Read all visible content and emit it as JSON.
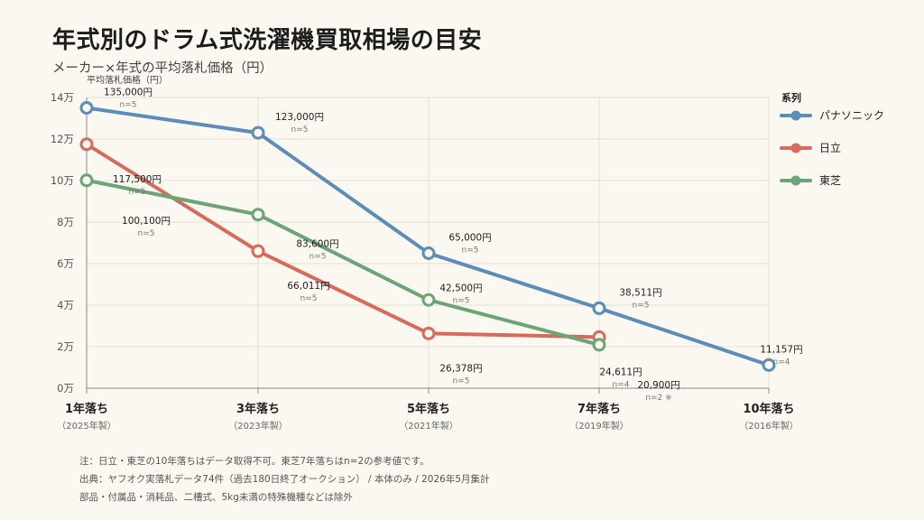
{
  "header": {
    "title": "年式別のドラム式洗濯機買取相場の目安",
    "subtitle": "メーカー×年式の平均落札価格（円）"
  },
  "chart_data": {
    "type": "line",
    "ylabel": "平均落札価格（円）",
    "ylim": [
      0,
      140000
    ],
    "yticks": [
      0,
      20000,
      40000,
      60000,
      80000,
      100000,
      120000,
      140000
    ],
    "ytick_labels": [
      "0万",
      "2万",
      "4万",
      "6万",
      "8万",
      "10万",
      "12万",
      "14万"
    ],
    "categories": [
      "1年落ち",
      "3年落ち",
      "5年落ち",
      "7年落ち",
      "10年落ち"
    ],
    "category_sublabels": [
      "（2025年製）",
      "（2023年製）",
      "（2021年製）",
      "（2019年製）",
      "（2016年製）"
    ],
    "x": [
      1,
      3,
      5,
      7,
      10
    ],
    "legend_title": "系列",
    "legend_position": "right",
    "grid": true,
    "series": [
      {
        "name": "パナソニック",
        "color": "#5b8db8",
        "values": [
          135000,
          123000,
          65000,
          38511,
          11157
        ],
        "value_labels": [
          "135,000円",
          "123,000円",
          "65,000円",
          "38,511円",
          "11,157円"
        ],
        "n_labels": [
          "n=5",
          "n=5",
          "n=5",
          "n=5",
          "n=4"
        ]
      },
      {
        "name": "日立",
        "color": "#d86a5c",
        "values": [
          117500,
          66011,
          26378,
          24611,
          null
        ],
        "value_labels": [
          "117,500円",
          "66,011円",
          "26,378円",
          "24,611円",
          null
        ],
        "n_labels": [
          "n=5",
          "n=5",
          "n=5",
          "n=4",
          null
        ]
      },
      {
        "name": "東芝",
        "color": "#6ba477",
        "values": [
          100100,
          83600,
          42500,
          20900,
          null
        ],
        "value_labels": [
          "100,100円",
          "83,600円",
          "42,500円",
          "20,900円",
          null
        ],
        "n_labels": [
          "n=5",
          "n=5",
          "n=5",
          "n=2 ※",
          null
        ]
      }
    ]
  },
  "notes": {
    "line1": "注：日立・東芝の10年落ちはデータ取得不可。東芝7年落ちはn=2の参考値です。",
    "line2": "出典：ヤフオク実落札データ74件（過去180日終了オークション） / 本体のみ / 2026年5月集計",
    "line3": "部品・付属品・消耗品、二槽式、5kg未満の特殊機種などは除外"
  }
}
